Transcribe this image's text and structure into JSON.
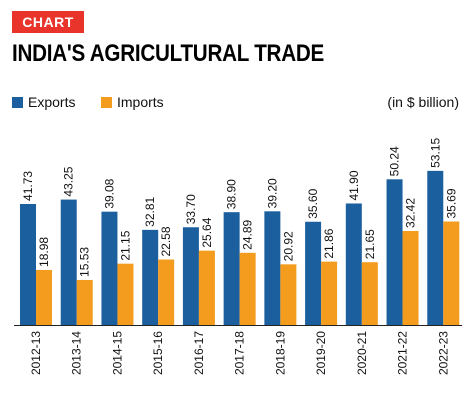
{
  "header": {
    "badge": "CHART",
    "title": "INDIA'S AGRICULTURAL TRADE",
    "unit_note": "(in $ billion)"
  },
  "colors": {
    "badge": "#e8342b",
    "exports": "#1b5f9f",
    "imports": "#f39c1e"
  },
  "chart_data": {
    "type": "bar",
    "title": "INDIA'S AGRICULTURAL TRADE",
    "ylabel": "",
    "xlabel": "",
    "ylim": [
      0,
      56
    ],
    "grid": false,
    "legend_position": "top-left",
    "categories": [
      "2012-13",
      "2013-14",
      "2014-15",
      "2015-16",
      "2016-17",
      "2017-18",
      "2018-19",
      "2019-20",
      "2020-21",
      "2021-22",
      "2022-23"
    ],
    "series": [
      {
        "name": "Exports",
        "values": [
          41.73,
          43.25,
          39.08,
          32.81,
          33.7,
          38.9,
          39.2,
          35.6,
          41.9,
          50.24,
          53.15
        ]
      },
      {
        "name": "Imports",
        "values": [
          18.98,
          15.53,
          21.15,
          22.58,
          25.64,
          24.89,
          20.92,
          21.86,
          21.65,
          32.42,
          35.69
        ]
      }
    ],
    "value_labels": {
      "Exports": [
        "41.73",
        "43.25",
        "39.08",
        "32.81",
        "33.70",
        "38.90",
        "39.20",
        "35.60",
        "41.90",
        "50.24",
        "53.15"
      ],
      "Imports": [
        "18.98",
        "15.53",
        "21.15",
        "22.58",
        "25.64",
        "24.89",
        "20.92",
        "21.86",
        "21.65",
        "32.42",
        "35.69"
      ]
    }
  }
}
